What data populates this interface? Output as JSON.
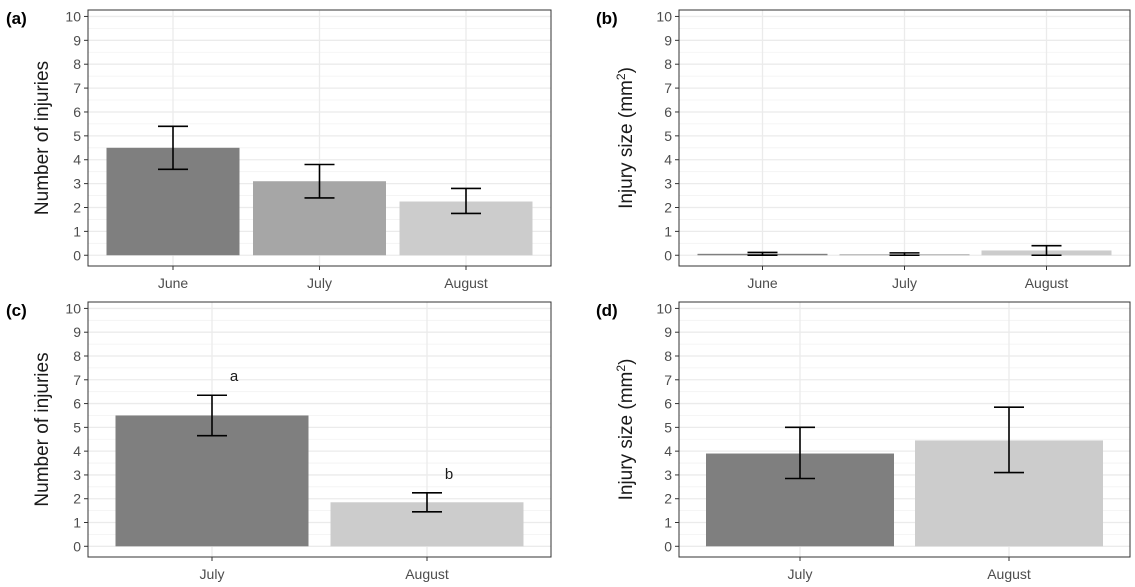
{
  "chart_data": [
    {
      "panel": "(a)",
      "type": "bar",
      "categories": [
        "June",
        "July",
        "August"
      ],
      "values": [
        4.5,
        3.1,
        2.25
      ],
      "error_low": [
        3.6,
        2.4,
        1.75
      ],
      "error_high": [
        5.4,
        3.8,
        2.8
      ],
      "colors": [
        "#7f7f7f",
        "#a6a6a6",
        "#cccccc"
      ],
      "ylabel": "Number of injuries",
      "ylabel_sup": "",
      "ylabel_suffix": "",
      "ylim": [
        0,
        10
      ],
      "yticks": [
        "0",
        "1",
        "2",
        "3",
        "4",
        "5",
        "6",
        "7",
        "8",
        "9",
        "10"
      ],
      "annotations": [],
      "grid": true
    },
    {
      "panel": "(b)",
      "type": "bar",
      "categories": [
        "June",
        "July",
        "August"
      ],
      "values": [
        0.06,
        0.04,
        0.2
      ],
      "error_low": [
        0.0,
        0.0,
        0.0
      ],
      "error_high": [
        0.12,
        0.1,
        0.4
      ],
      "colors": [
        "#7f7f7f",
        "#a6a6a6",
        "#cccccc"
      ],
      "ylabel": "Injury size (mm",
      "ylabel_sup": "2",
      "ylabel_suffix": ")",
      "ylim": [
        0,
        10
      ],
      "yticks": [
        "0",
        "1",
        "2",
        "3",
        "4",
        "5",
        "6",
        "7",
        "8",
        "9",
        "10"
      ],
      "annotations": [],
      "grid": true
    },
    {
      "panel": "(c)",
      "type": "bar",
      "categories": [
        "July",
        "August"
      ],
      "values": [
        5.5,
        1.85
      ],
      "error_low": [
        4.65,
        1.45
      ],
      "error_high": [
        6.35,
        2.25
      ],
      "colors": [
        "#7f7f7f",
        "#cccccc"
      ],
      "ylabel": "Number of injuries",
      "ylabel_sup": "",
      "ylabel_suffix": "",
      "ylim": [
        0,
        10
      ],
      "yticks": [
        "0",
        "1",
        "2",
        "3",
        "4",
        "5",
        "6",
        "7",
        "8",
        "9",
        "10"
      ],
      "annotations": [
        "a",
        "b"
      ],
      "grid": true
    },
    {
      "panel": "(d)",
      "type": "bar",
      "categories": [
        "July",
        "August"
      ],
      "values": [
        3.9,
        4.45
      ],
      "error_low": [
        2.85,
        3.1
      ],
      "error_high": [
        5.0,
        5.85
      ],
      "colors": [
        "#7f7f7f",
        "#cccccc"
      ],
      "ylabel": "Injury size (mm",
      "ylabel_sup": "2",
      "ylabel_suffix": ")",
      "ylim": [
        0,
        10
      ],
      "yticks": [
        "0",
        "1",
        "2",
        "3",
        "4",
        "5",
        "6",
        "7",
        "8",
        "9",
        "10"
      ],
      "annotations": [],
      "grid": true
    }
  ],
  "style": {
    "grid_major": "#ebebeb",
    "grid_minor": "#f2f2f2",
    "panel_border": "#333333",
    "tick_color": "#333333",
    "errorbar_color": "#000000"
  }
}
